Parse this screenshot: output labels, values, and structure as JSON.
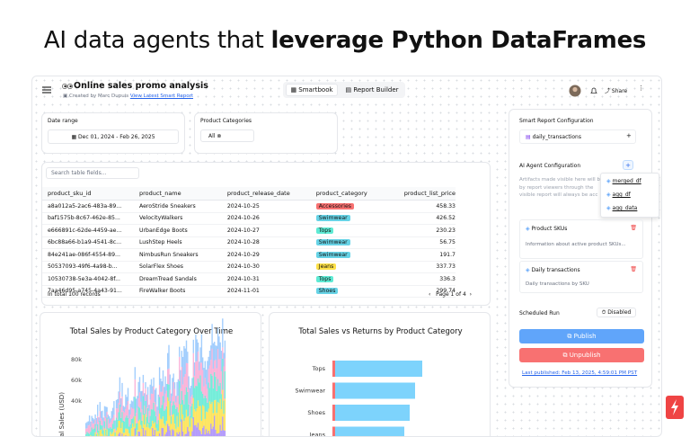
{
  "headline": {
    "regular": "AI data agents that",
    "bold": "leverage Python DataFrames"
  },
  "topbar": {
    "title": "Online sales promo analysis",
    "created_by": "Created by Marc Dupuis",
    "link": "View Latest Smart Report",
    "tabs": [
      "Smartbook",
      "Report Builder"
    ],
    "share": "Share"
  },
  "filters": {
    "date_label": "Date range",
    "date_value": "Dec 01, 2024 - Feb 26, 2025",
    "category_label": "Product Categories",
    "category_value": "All"
  },
  "table": {
    "search_placeholder": "Search table fields...",
    "columns": [
      "product_sku_id",
      "product_name",
      "product_release_date",
      "product_category",
      "product_list_price"
    ],
    "rows": [
      [
        "a8a012a5-2ac6-483a-89...",
        "AeroStride Sneakers",
        "2024-10-25",
        "Accessories",
        "458.33"
      ],
      [
        "baf1575b-8c67-462e-85...",
        "VelocityWalkers",
        "2024-10-26",
        "Swimwear",
        "426.52"
      ],
      [
        "e666891c-62de-4459-ae...",
        "UrbanEdge Boots",
        "2024-10-27",
        "Tops",
        "230.23"
      ],
      [
        "6bc88a66-b1a9-4541-8c...",
        "LushStep Heels",
        "2024-10-28",
        "Swimwear",
        "56.75"
      ],
      [
        "84e241ae-086f-4554-89...",
        "NimbusRun Sneakers",
        "2024-10-29",
        "Swimwear",
        "191.7"
      ],
      [
        "50537093-49f6-4a98-b...",
        "SolarFlex Shoes",
        "2024-10-30",
        "Jeans",
        "337.73"
      ],
      [
        "10530738-5e3a-4042-8f...",
        "DreamTread Sandals",
        "2024-10-31",
        "Tops",
        "336.3"
      ],
      [
        "7aa46d95-a745-4a43-91...",
        "FireWalker Boots",
        "2024-11-01",
        "Shoes",
        "299.74"
      ]
    ],
    "category_colors": [
      "#f87171",
      "#67d3e6",
      "#5eead4",
      "#67d3e6",
      "#67d3e6",
      "#fde047",
      "#5eead4",
      "#67d3e6"
    ],
    "footer_total": "In total 100 records",
    "pagination": "Page 1 of 4"
  },
  "charts": [
    {
      "title": "Total Sales by Product Category Over Time",
      "yticks": [
        "80k",
        "60k",
        "40k"
      ],
      "ylabel": "Total Sales (USD)"
    },
    {
      "title": "Total Sales vs Returns by Product Category",
      "categories": [
        "Tops",
        "Swimwear",
        "Shoes",
        "Jeans"
      ]
    }
  ],
  "panel": {
    "title": "Smart Report Configuration",
    "dataset": "daily_transactions",
    "agent_title": "AI Agent Configuration",
    "dropdown": [
      "merged_df",
      "agg_df",
      "agg_data"
    ],
    "description": [
      "Artifacts made visible here will b",
      "by report viewers through the",
      "visible report will always be acc"
    ],
    "artifacts": [
      {
        "name": "Product SKUs",
        "desc": "Information about active product SKUs..."
      },
      {
        "name": "Daily transactions",
        "desc": "Daily transactions by SKU"
      }
    ],
    "scheduled_label": "Scheduled Run",
    "scheduled_value": "Disabled",
    "publish": "Publish",
    "unpublish": "Unpublish",
    "last_published": "Last published: Feb 13, 2025, 4:59:01 PM PST"
  }
}
